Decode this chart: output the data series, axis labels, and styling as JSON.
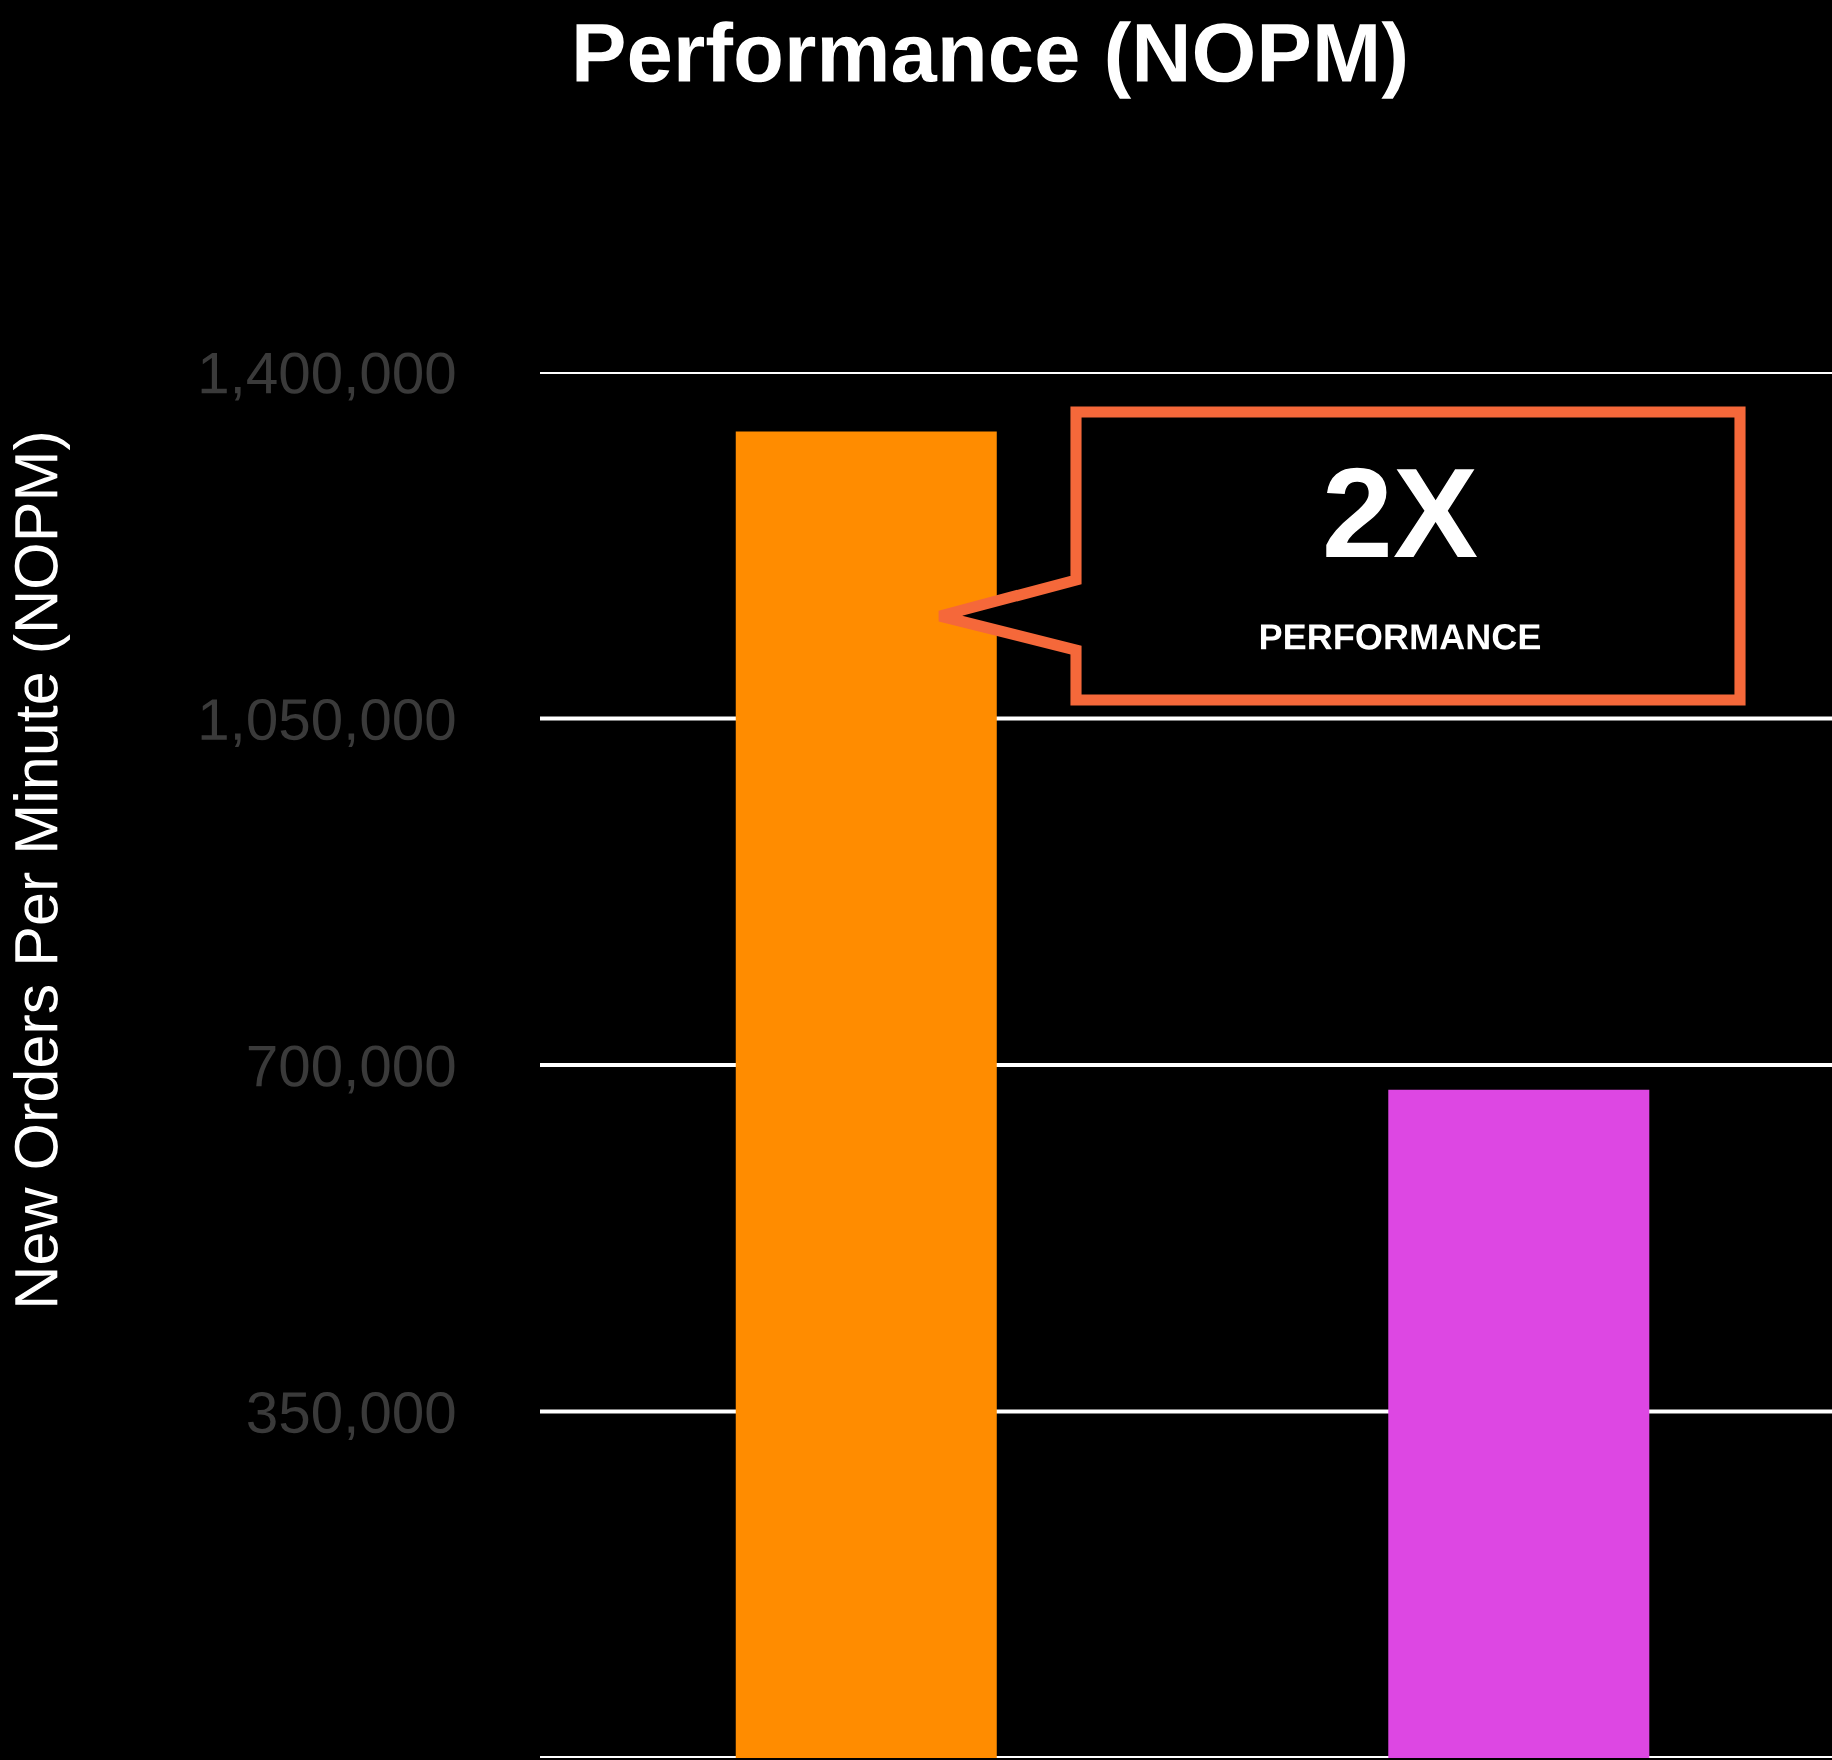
{
  "chart_data": {
    "type": "bar",
    "title": "Performance (NOPM)",
    "ylabel": "New Orders Per Minute (NOPM)",
    "categories": [
      null,
      null
    ],
    "values": [
      1340000,
      675000
    ],
    "colors": [
      "#ff8c00",
      "#dd47e3"
    ],
    "ylim": [
      0,
      1400000
    ],
    "yticks": [
      {
        "value": 0,
        "label": null
      },
      {
        "value": 350000,
        "label": "350,000"
      },
      {
        "value": 700000,
        "label": "700,000"
      },
      {
        "value": 1050000,
        "label": "1,050,000"
      },
      {
        "value": 1400000,
        "label": "1,400,000"
      }
    ],
    "grid": "y",
    "annotations": [
      "2X",
      "PERFORMANCE"
    ]
  }
}
